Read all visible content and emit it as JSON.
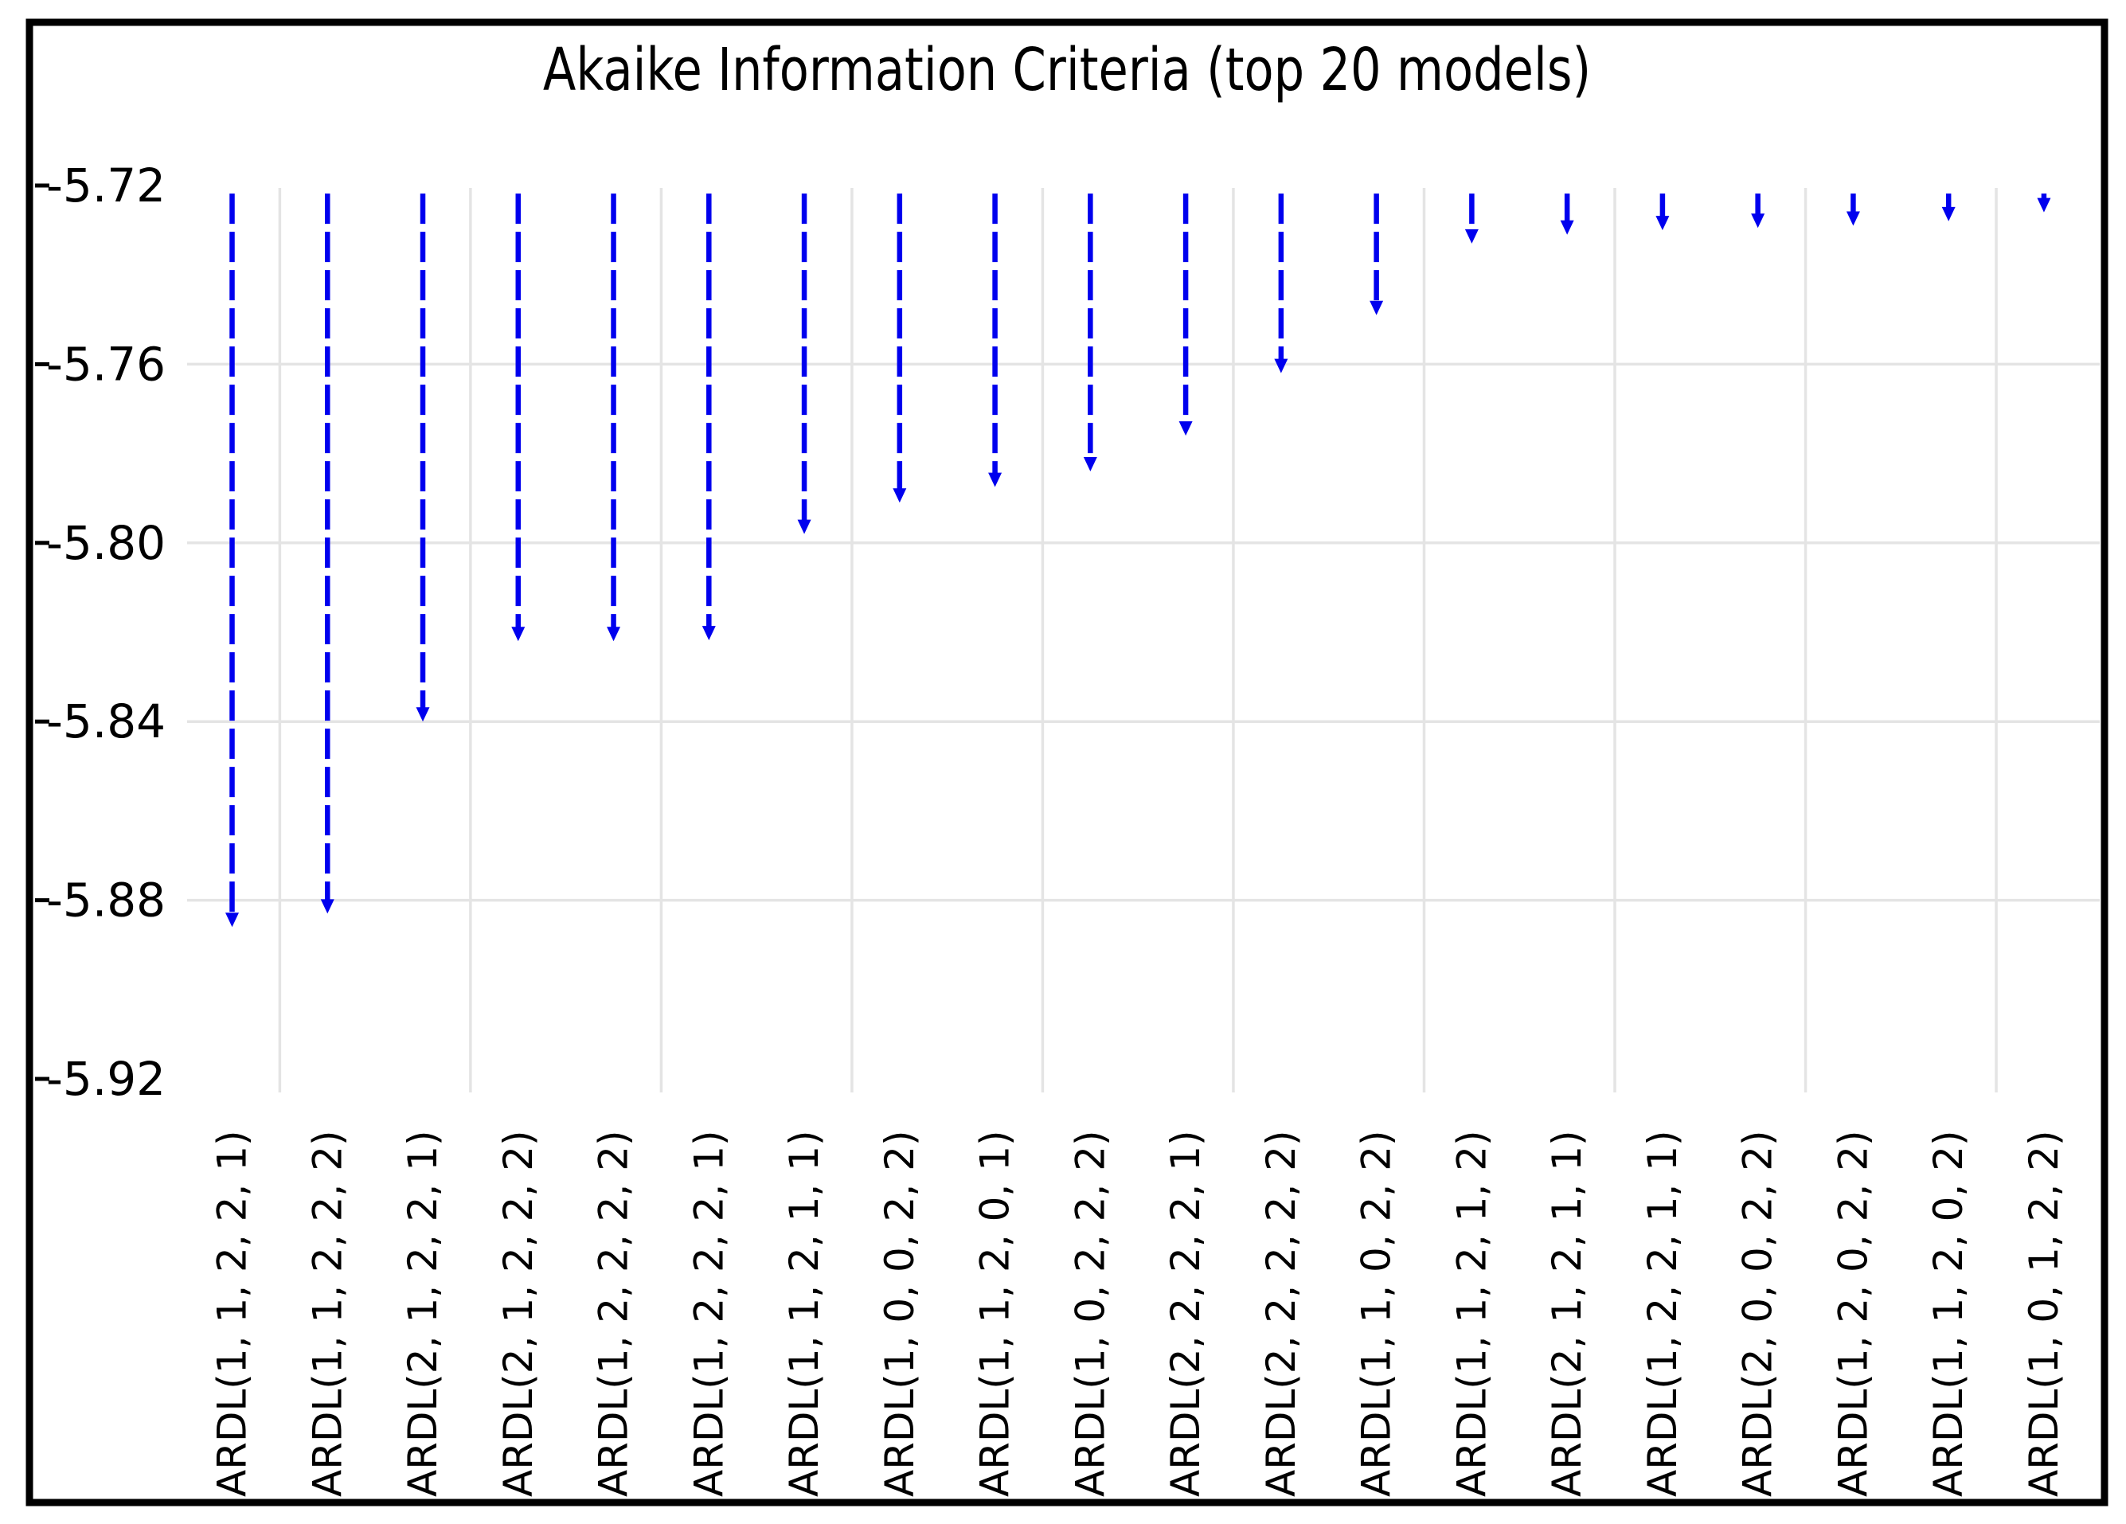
{
  "chart_data": {
    "type": "bar",
    "style": "dashed-arrow-droplines",
    "title": "Akaike Information Criteria (top 20 models)",
    "categories": [
      "ARDL(1, 1, 2, 2, 1)",
      "ARDL(1, 1, 2, 2, 2)",
      "ARDL(2, 1, 2, 2, 1)",
      "ARDL(2, 1, 2, 2, 2)",
      "ARDL(1, 2, 2, 2, 2)",
      "ARDL(1, 2, 2, 2, 1)",
      "ARDL(1, 1, 2, 1, 1)",
      "ARDL(1, 0, 0, 2, 2)",
      "ARDL(1, 1, 2, 0, 1)",
      "ARDL(1, 0, 2, 2, 2)",
      "ARDL(2, 2, 2, 2, 1)",
      "ARDL(2, 2, 2, 2, 2)",
      "ARDL(1, 1, 0, 2, 2)",
      "ARDL(1, 1, 2, 1, 2)",
      "ARDL(2, 1, 2, 1, 1)",
      "ARDL(1, 2, 2, 1, 1)",
      "ARDL(2, 0, 0, 2, 2)",
      "ARDL(1, 2, 0, 2, 2)",
      "ARDL(1, 1, 2, 0, 2)",
      "ARDL(1, 0, 1, 2, 2)"
    ],
    "values": [
      -5.886,
      -5.883,
      -5.84,
      -5.822,
      -5.822,
      -5.8218,
      -5.798,
      -5.791,
      -5.7875,
      -5.784,
      -5.776,
      -5.762,
      -5.749,
      -5.733,
      -5.731,
      -5.73,
      -5.7295,
      -5.729,
      -5.728,
      -5.726
    ],
    "arrow_start_value": -5.7218,
    "xlabel": "",
    "ylabel": "",
    "ylim": [
      -5.92,
      -5.72
    ],
    "yticks": [
      -5.72,
      -5.76,
      -5.8,
      -5.84,
      -5.88,
      -5.92
    ],
    "ytick_labels": [
      "-5.72",
      "-5.76",
      "-5.80",
      "-5.84",
      "-5.88",
      "-5.92"
    ],
    "grid": {
      "horizontal_gridlines_at": [
        -5.76,
        -5.8,
        -5.84,
        -5.88
      ],
      "vertical_gridlines": "between every second category",
      "legend": "none"
    },
    "colors": {
      "arrow": "#0000ee",
      "gridline": "#e4e4e4",
      "frame": "#000000",
      "text": "#000000",
      "background": "#ffffff"
    }
  }
}
